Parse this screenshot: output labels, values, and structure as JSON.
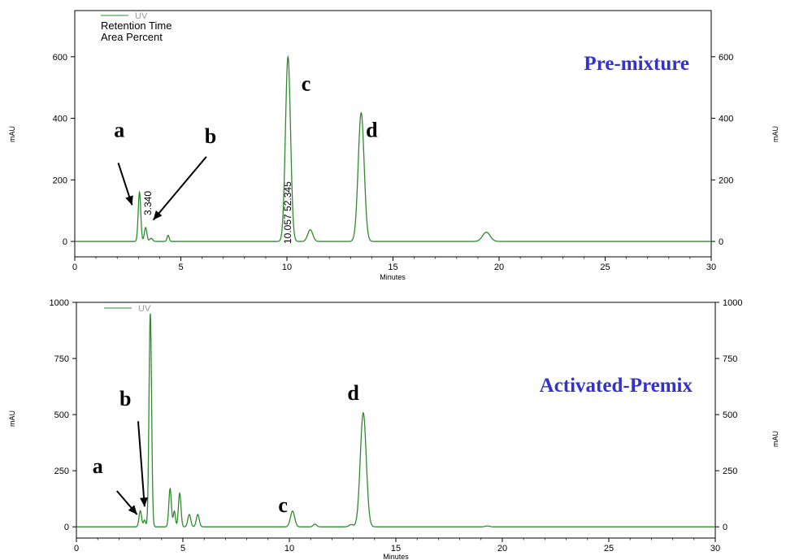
{
  "colors": {
    "trace": "#2e8b2e",
    "title": "#3333cc",
    "axis": "#000000",
    "legend_grey": "#9a9a9a"
  },
  "chart_data": [
    {
      "type": "line",
      "title": "Pre-mixture",
      "xlabel": "Minutes",
      "ylabel_left": "mAU",
      "ylabel_right": "mAU",
      "xlim": [
        0,
        30
      ],
      "ylim": [
        -50,
        750
      ],
      "xticks": [
        "0",
        "5",
        "10",
        "15",
        "20",
        "25",
        "30"
      ],
      "yticks": [
        "0",
        "200",
        "400",
        "600"
      ],
      "legend": [
        "UV",
        "Retention Time",
        "Area Percent"
      ],
      "rt_annotations": [
        "3.340",
        "10.057  52.345"
      ],
      "series": [
        {
          "name": "UV",
          "baseline": 0,
          "peaks": [
            {
              "x": 3.05,
              "y": 160,
              "w": 0.06
            },
            {
              "x": 3.34,
              "y": 45,
              "w": 0.06
            },
            {
              "x": 3.6,
              "y": 10,
              "w": 0.07
            },
            {
              "x": 4.4,
              "y": 20,
              "w": 0.05
            },
            {
              "x": 10.05,
              "y": 600,
              "w": 0.12
            },
            {
              "x": 11.1,
              "y": 38,
              "w": 0.12
            },
            {
              "x": 13.5,
              "y": 418,
              "w": 0.14
            },
            {
              "x": 19.4,
              "y": 30,
              "w": 0.18
            }
          ]
        }
      ],
      "peak_labels": [
        {
          "text": "a",
          "x": 2.1,
          "y": 340
        },
        {
          "text": "b",
          "x": 6.4,
          "y": 320
        },
        {
          "text": "c",
          "x": 10.9,
          "y": 490
        },
        {
          "text": "d",
          "x": 14.0,
          "y": 340
        }
      ],
      "arrows": [
        {
          "from": [
            2.05,
            255
          ],
          "to": [
            2.7,
            118
          ]
        },
        {
          "from": [
            6.2,
            275
          ],
          "to": [
            3.7,
            70
          ]
        }
      ]
    },
    {
      "type": "line",
      "title": "Activated-Premix",
      "xlabel": "Minutes",
      "ylabel_left": "mAU",
      "ylabel_right": "mAU",
      "xlim": [
        0,
        30
      ],
      "ylim": [
        -50,
        1000
      ],
      "xticks": [
        "0",
        "5",
        "10",
        "15",
        "20",
        "25",
        "30"
      ],
      "yticks": [
        "0",
        "250",
        "500",
        "750",
        "1000"
      ],
      "legend": [
        "UV"
      ],
      "series": [
        {
          "name": "UV",
          "baseline": 0,
          "peaks": [
            {
              "x": 3.0,
              "y": 72,
              "w": 0.06
            },
            {
              "x": 3.2,
              "y": 30,
              "w": 0.05
            },
            {
              "x": 3.47,
              "y": 950,
              "w": 0.06
            },
            {
              "x": 4.4,
              "y": 170,
              "w": 0.06
            },
            {
              "x": 4.6,
              "y": 70,
              "w": 0.05
            },
            {
              "x": 4.85,
              "y": 150,
              "w": 0.06
            },
            {
              "x": 5.3,
              "y": 55,
              "w": 0.07
            },
            {
              "x": 5.7,
              "y": 55,
              "w": 0.07
            },
            {
              "x": 10.15,
              "y": 70,
              "w": 0.1
            },
            {
              "x": 11.2,
              "y": 12,
              "w": 0.08
            },
            {
              "x": 12.9,
              "y": 10,
              "w": 0.1
            },
            {
              "x": 13.47,
              "y": 508,
              "w": 0.14
            },
            {
              "x": 19.3,
              "y": 4,
              "w": 0.1
            }
          ]
        }
      ],
      "peak_labels": [
        {
          "text": "a",
          "x": 1.0,
          "y": 240
        },
        {
          "text": "b",
          "x": 2.3,
          "y": 540
        },
        {
          "text": "c",
          "x": 9.7,
          "y": 65
        },
        {
          "text": "d",
          "x": 13.0,
          "y": 565
        }
      ],
      "arrows": [
        {
          "from": [
            1.9,
            160
          ],
          "to": [
            2.85,
            55
          ]
        },
        {
          "from": [
            2.9,
            470
          ],
          "to": [
            3.2,
            90
          ]
        }
      ]
    }
  ]
}
